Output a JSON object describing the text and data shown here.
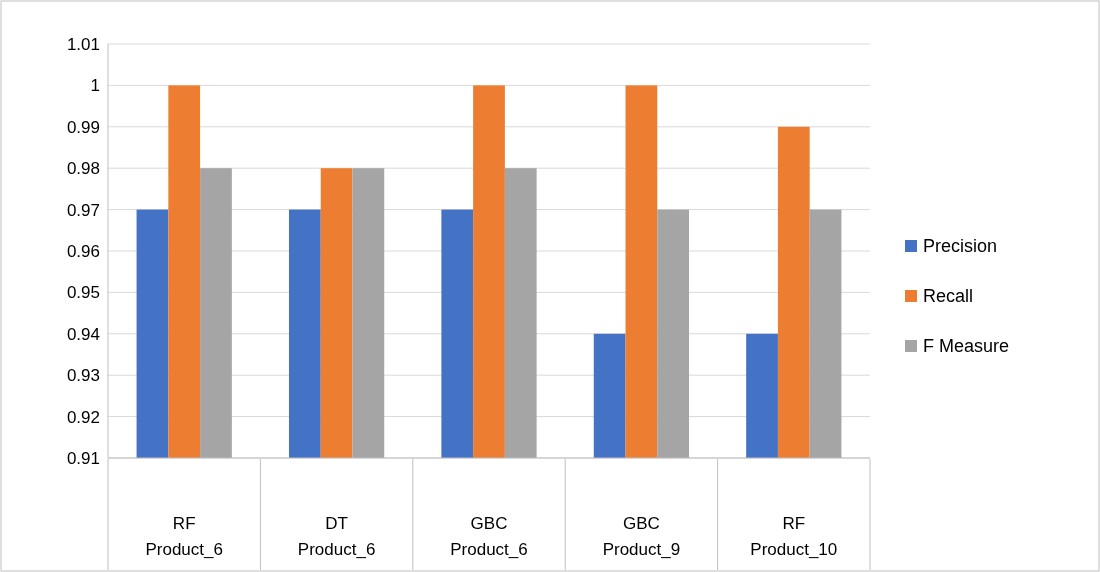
{
  "chart_data": {
    "type": "bar",
    "categories": [
      "RF\nProduct_6",
      "DT\nProduct_6",
      "GBC\nProduct_6",
      "GBC\nProduct_9",
      "RF\nProduct_10"
    ],
    "series": [
      {
        "name": "Precision",
        "color": "#4472c4",
        "values": [
          0.97,
          0.97,
          0.97,
          0.94,
          0.94
        ]
      },
      {
        "name": "Recall",
        "color": "#ed7d31",
        "values": [
          1,
          0.98,
          1,
          1,
          0.99
        ]
      },
      {
        "name": "F Measure",
        "color": "#a5a5a5",
        "values": [
          0.98,
          0.98,
          0.98,
          0.97,
          0.97
        ]
      }
    ],
    "ylim": [
      0.91,
      1.01
    ],
    "yticks": [
      0.91,
      0.92,
      0.93,
      0.94,
      0.95,
      0.96,
      0.97,
      0.98,
      0.99,
      1,
      1.01
    ],
    "grid": "y",
    "legend": "right"
  }
}
